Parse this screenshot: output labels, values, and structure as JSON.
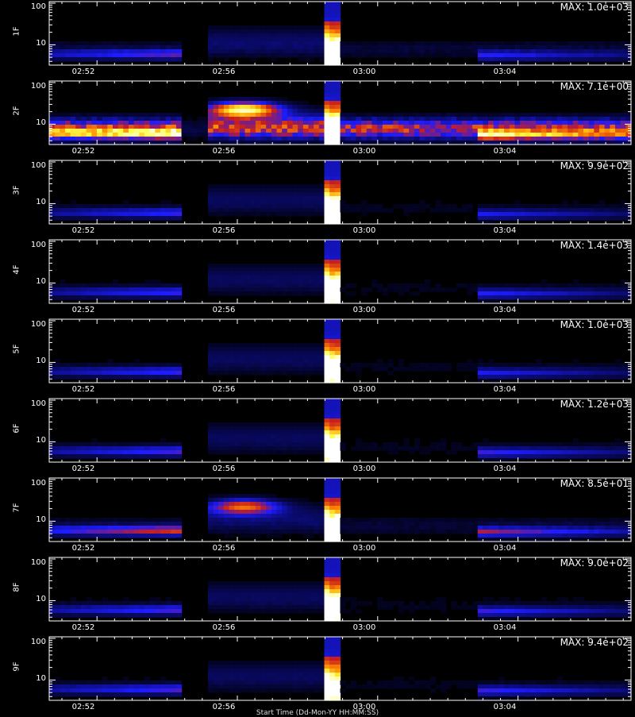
{
  "chart_data": {
    "type": "heatmap",
    "x_tick_labels": [
      "02:52",
      "02:56",
      "03:00",
      "03:04"
    ],
    "y_tick_labels": [
      "10",
      "100"
    ],
    "x_axis_title": "Start Time (Dd-Mon-YY HH:MM:SS)",
    "colormap": [
      "#000000",
      "#0a0a6e",
      "#1c1cff",
      "#c81e1e",
      "#ff8c00",
      "#ffff46",
      "#ffffff"
    ],
    "panels": [
      {
        "label": "1F",
        "max_label": "MAX: 1.0e+03",
        "burst": 0.95,
        "noise": 0.1,
        "pre": 0.32,
        "post": 0.3,
        "flare": 0.0
      },
      {
        "label": "2F",
        "max_label": "MAX: 7.1e+00",
        "burst": 1.0,
        "noise": 0.62,
        "pre": 0.55,
        "post": 0.55,
        "flare": 0.85
      },
      {
        "label": "3F",
        "max_label": "MAX: 9.9e+02",
        "burst": 0.95,
        "noise": 0.06,
        "pre": 0.3,
        "post": 0.3,
        "flare": 0.0
      },
      {
        "label": "4F",
        "max_label": "MAX: 1.4e+03",
        "burst": 0.9,
        "noise": 0.06,
        "pre": 0.3,
        "post": 0.32,
        "flare": 0.0
      },
      {
        "label": "5F",
        "max_label": "MAX: 1.0e+03",
        "burst": 0.9,
        "noise": 0.06,
        "pre": 0.3,
        "post": 0.3,
        "flare": 0.0
      },
      {
        "label": "6F",
        "max_label": "MAX: 1.2e+03",
        "burst": 0.88,
        "noise": 0.06,
        "pre": 0.32,
        "post": 0.34,
        "flare": 0.0
      },
      {
        "label": "7F",
        "max_label": "MAX: 8.5e+01",
        "burst": 0.95,
        "noise": 0.1,
        "pre": 0.45,
        "post": 0.42,
        "flare": 0.55
      },
      {
        "label": "8F",
        "max_label": "MAX: 9.0e+02",
        "burst": 0.88,
        "noise": 0.06,
        "pre": 0.32,
        "post": 0.34,
        "flare": 0.0
      },
      {
        "label": "9F",
        "max_label": "MAX: 9.4e+02",
        "burst": 0.85,
        "noise": 0.06,
        "pre": 0.32,
        "post": 0.34,
        "flare": 0.0
      }
    ]
  }
}
